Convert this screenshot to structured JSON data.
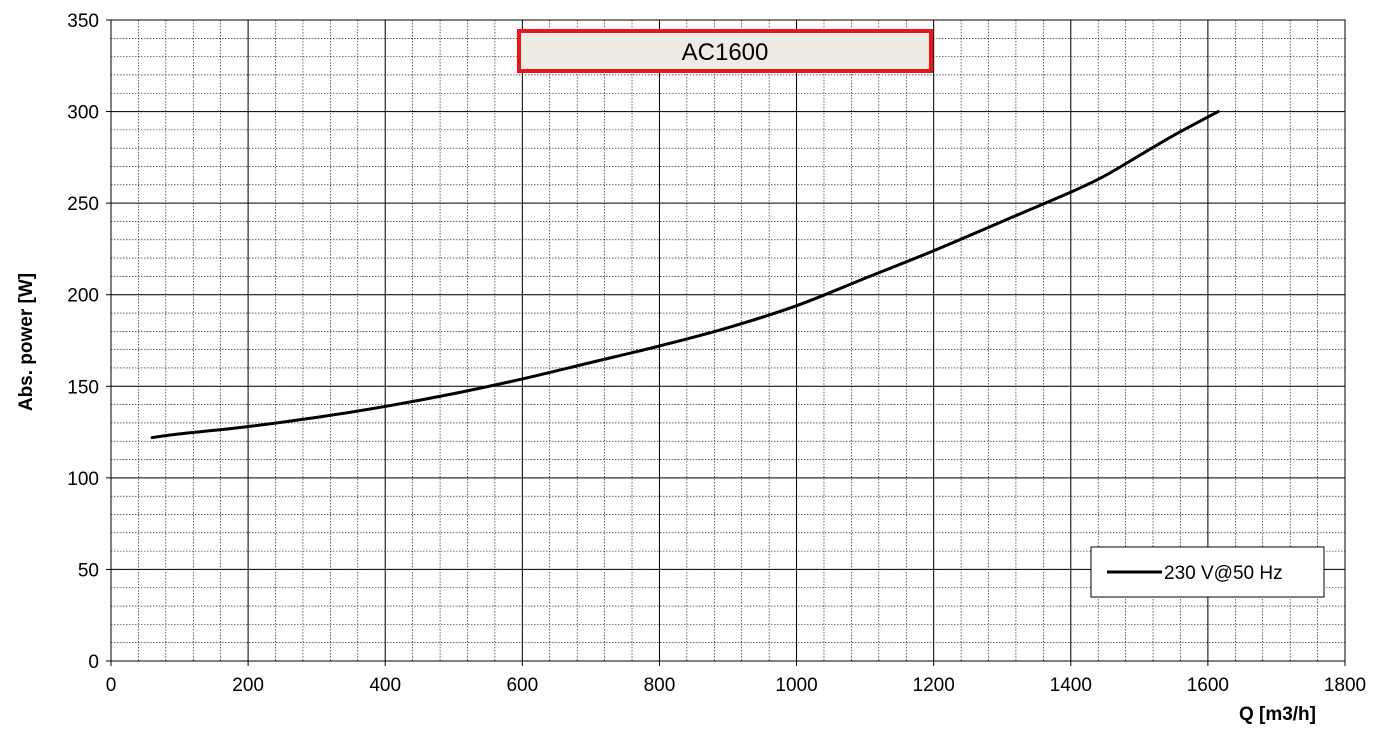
{
  "chart_data": {
    "type": "line",
    "title": "AC1600",
    "xlabel": "Q [m3/h]",
    "ylabel": "Abs. power [W]",
    "xlim": [
      0,
      1800
    ],
    "ylim": [
      0,
      350
    ],
    "x_major_step": 200,
    "y_major_step": 50,
    "x_minor_step": 40,
    "y_minor_step": 10,
    "grid": true,
    "legend_position": "bottom-right",
    "colors": {
      "title_border": "#e8161b",
      "title_fill": "#eeeae4",
      "line": "#000000"
    },
    "series": [
      {
        "name": "230 V@50 Hz",
        "x": [
          60,
          100,
          200,
          300,
          400,
          500,
          600,
          700,
          800,
          900,
          1000,
          1100,
          1200,
          1300,
          1400,
          1450,
          1500,
          1550,
          1615
        ],
        "y": [
          122,
          124,
          128,
          133,
          139,
          146,
          154,
          163,
          172,
          182,
          194,
          209,
          224,
          240,
          256,
          265,
          276,
          287,
          300
        ]
      }
    ]
  }
}
